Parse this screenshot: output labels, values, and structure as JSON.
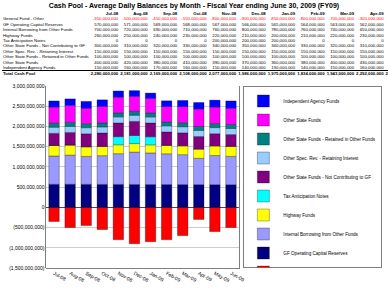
{
  "chart_data": {
    "type": "bar",
    "title": "Cash Pool - Average Daily Balances by Month - Fiscal Year ending June 30, 2009 (FY09)",
    "stacked": true,
    "grid": true,
    "legend": "right",
    "categories": [
      "Jul-08",
      "Aug-08",
      "Sep-08",
      "Oct-08",
      "Nov-08",
      "Dec-08",
      "Jan-09",
      "Feb-09",
      "Mar-09",
      "Apr-09",
      "May-09",
      "Jun-09"
    ],
    "series": [
      {
        "name": "General Fund - Other",
        "color": "#ff0000",
        "values": [
          -350000000,
          -500000000,
          -450000000,
          -550000000,
          -800000000,
          -900000000,
          -850000000,
          -800000000,
          -700000000,
          -300000000,
          -600000000,
          -500000000
        ]
      },
      {
        "name": "GF Operating Capital Reserves",
        "color": "#000080",
        "values": [
          570000000,
          571000000,
          569000000,
          568000000,
          567000000,
          566000000,
          565000000,
          564000000,
          563000000,
          562000000,
          561000000,
          560000000
        ]
      },
      {
        "name": "Internal Borrowing from Other Funds",
        "color": "#9999ff",
        "values": [
          700000000,
          720000000,
          690000000,
          710000000,
          760000000,
          800000000,
          780000000,
          760000000,
          740000000,
          650000000,
          720000000,
          700000000
        ]
      },
      {
        "name": "Highway Funds",
        "color": "#ffff00",
        "values": [
          260000000,
          250000000,
          240000000,
          230000000,
          220000000,
          210000000,
          200000000,
          210000000,
          220000000,
          230000000,
          240000000,
          250000000
        ]
      },
      {
        "name": "Tax Anticipation Notes",
        "color": "#00ffff",
        "values": [
          0,
          0,
          0,
          0,
          200000000,
          200000000,
          200000000,
          0,
          0,
          0,
          0,
          0
        ]
      },
      {
        "name": "Other State Funds - Not Contributing to GF",
        "color": "#800080",
        "values": [
          300000000,
          310000000,
          320000000,
          330000000,
          340000000,
          350000000,
          340000000,
          330000000,
          320000000,
          310000000,
          300000000,
          290000000
        ]
      },
      {
        "name": "Other Spec. Rev. - Retaining Interest",
        "color": "#99ccff",
        "values": [
          150000000,
          150000000,
          150000000,
          150000000,
          150000000,
          150000000,
          150000000,
          150000000,
          150000000,
          150000000,
          150000000,
          150000000
        ]
      },
      {
        "name": "Other State Funds - Retained in Other Funds",
        "color": "#008080",
        "values": [
          100000000,
          100000000,
          100000000,
          100000000,
          100000000,
          100000000,
          100000000,
          100000000,
          100000000,
          100000000,
          100000000,
          100000000
        ]
      },
      {
        "name": "Other State Funds",
        "color": "#ff00ff",
        "values": [
          400000000,
          420000000,
          380000000,
          410000000,
          390000000,
          370000000,
          360000000,
          380000000,
          400000000,
          430000000,
          410000000,
          400000000
        ]
      },
      {
        "name": "Independent Agency Funds",
        "color": "#0000ff",
        "values": [
          150000000,
          160000000,
          170000000,
          160000000,
          150000000,
          140000000,
          130000000,
          140000000,
          150000000,
          160000000,
          170000000,
          180000000
        ]
      }
    ],
    "total_label": "Total Cash Pool",
    "totals": [
      2280000000,
      2181000000,
      2169000000,
      2108000000,
      2077000000,
      1986000000,
      1975000000,
      1834000000,
      1943000000,
      2292000000,
      2051000000,
      2130000000
    ],
    "ylim": [
      -1500000000,
      3000000000
    ],
    "yticks": [
      {
        "value": -1500000000,
        "label": "(1,500,000,000)"
      },
      {
        "value": -1000000000,
        "label": "(1,000,000,000)"
      },
      {
        "value": -500000000,
        "label": "(500,000,000)"
      },
      0,
      {
        "value": 500000000,
        "label": "500,000,000"
      },
      {
        "value": 1000000000,
        "label": "1,000,000,000"
      },
      {
        "value": 1500000000,
        "label": "1,500,000,000"
      },
      {
        "value": 2000000000,
        "label": "2,000,000,000"
      },
      {
        "value": 2500000000,
        "label": "2,500,000,000"
      },
      {
        "value": 3000000000,
        "label": "3,000,000,000"
      }
    ]
  }
}
